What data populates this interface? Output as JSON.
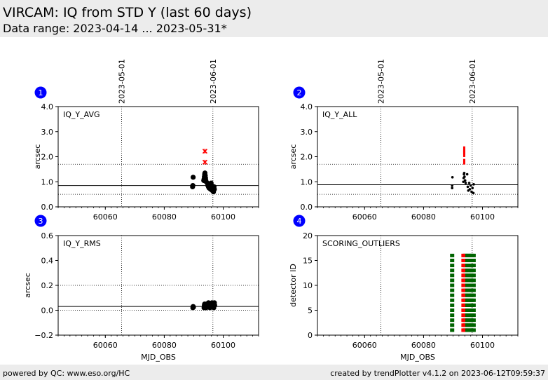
{
  "header": {
    "title": "VIRCAM: IQ from STD Y (last 60 days)",
    "subtitle": "Data range: 2023-04-14 ... 2023-05-31*"
  },
  "footer": {
    "left": "powered by QC: www.eso.org/HC",
    "right": "created by trendPlotter v4.1.2 on 2023-06-12T09:59:37"
  },
  "colors": {
    "badge": "#0000ff",
    "points": "#000000",
    "outliers": "#ff0000",
    "scoring_ok": "#006400",
    "scoring_bad": "#ff0000"
  },
  "chart_data": [
    {
      "panel": "1",
      "type": "scatter",
      "label": "IQ_Y_AVG",
      "xlabel": "",
      "ylabel": "arcsec",
      "xlim": [
        60044,
        60112
      ],
      "ylim": [
        0,
        4
      ],
      "xticks": [
        60060,
        60080,
        60100
      ],
      "yticks": [
        0,
        1,
        2,
        3,
        4
      ],
      "date_markers": [
        {
          "x": 60065.5,
          "label": "2023-05-01"
        },
        {
          "x": 60096.5,
          "label": "2023-06-01"
        }
      ],
      "ref_line": 0.85,
      "dotted_lines": [
        0.5,
        1.7
      ],
      "points": [
        [
          60089.6,
          0.8
        ],
        [
          60089.7,
          0.85
        ],
        [
          60089.8,
          1.18
        ],
        [
          60093.4,
          1.05
        ],
        [
          60093.5,
          1.1
        ],
        [
          60093.6,
          1.2
        ],
        [
          60093.7,
          1.3
        ],
        [
          60093.8,
          1.35
        ],
        [
          60093.9,
          1.25
        ],
        [
          60094.0,
          1.15
        ],
        [
          60094.1,
          1.05
        ],
        [
          60094.2,
          1.0
        ],
        [
          60094.6,
          0.95
        ],
        [
          60094.8,
          0.85
        ],
        [
          60095.0,
          0.8
        ],
        [
          60095.2,
          0.75
        ],
        [
          60095.5,
          0.9
        ],
        [
          60095.7,
          0.7
        ],
        [
          60095.9,
          0.95
        ],
        [
          60096.1,
          0.85
        ],
        [
          60096.3,
          0.65
        ],
        [
          60096.5,
          0.75
        ],
        [
          60096.7,
          0.6
        ],
        [
          60096.9,
          0.8
        ],
        [
          60097.0,
          0.7
        ]
      ],
      "outliers": [
        [
          60093.8,
          2.22
        ],
        [
          60093.8,
          1.78
        ]
      ]
    },
    {
      "panel": "2",
      "type": "scatter",
      "label": "IQ_Y_ALL",
      "xlabel": "",
      "ylabel": "arcsec",
      "xlim": [
        60044,
        60112
      ],
      "ylim": [
        0,
        4
      ],
      "xticks": [
        60060,
        60080,
        60100
      ],
      "yticks": [
        0,
        1,
        2,
        3,
        4
      ],
      "date_markers": [
        {
          "x": 60065.5,
          "label": "2023-05-01"
        },
        {
          "x": 60096.5,
          "label": "2023-06-01"
        }
      ],
      "ref_line": 0.88,
      "dotted_lines": [
        0.5,
        1.7
      ],
      "points": [
        [
          60089.7,
          0.75
        ],
        [
          60089.7,
          0.85
        ],
        [
          60089.8,
          1.18
        ],
        [
          60093.5,
          1.0
        ],
        [
          60093.6,
          1.15
        ],
        [
          60093.7,
          1.3
        ],
        [
          60093.8,
          1.35
        ],
        [
          60093.9,
          1.2
        ],
        [
          60094.1,
          1.05
        ],
        [
          60094.3,
          0.95
        ],
        [
          60094.8,
          1.3
        ],
        [
          60095.0,
          0.8
        ],
        [
          60095.2,
          0.65
        ],
        [
          60095.5,
          0.95
        ],
        [
          60095.7,
          0.7
        ],
        [
          60096.0,
          0.85
        ],
        [
          60096.3,
          0.6
        ],
        [
          60096.6,
          0.75
        ],
        [
          60096.9,
          0.55
        ],
        [
          60097.0,
          0.9
        ]
      ],
      "outliers": [
        [
          60093.8,
          2.3
        ],
        [
          60093.8,
          2.2
        ],
        [
          60093.8,
          2.1
        ],
        [
          60093.8,
          1.8
        ]
      ]
    },
    {
      "panel": "3",
      "type": "scatter",
      "label": "IQ_Y_RMS",
      "xlabel": "MJD_OBS",
      "ylabel": "arcsec",
      "xlim": [
        60044,
        60112
      ],
      "ylim": [
        -0.2,
        0.6
      ],
      "xticks": [
        60060,
        60080,
        60100
      ],
      "yticks": [
        -0.2,
        0.0,
        0.2,
        0.4,
        0.6
      ],
      "date_markers": [
        {
          "x": 60065.5,
          "label": "2023-05-01"
        },
        {
          "x": 60096.5,
          "label": "2023-06-01"
        }
      ],
      "ref_line": 0.03,
      "dotted_lines": [
        0.0,
        0.2
      ],
      "points": [
        [
          60089.7,
          0.02
        ],
        [
          60089.8,
          0.03
        ],
        [
          60089.9,
          0.025
        ],
        [
          60093.5,
          0.02
        ],
        [
          60093.6,
          0.04
        ],
        [
          60093.7,
          0.05
        ],
        [
          60093.8,
          0.03
        ],
        [
          60094.0,
          0.045
        ],
        [
          60094.2,
          0.02
        ],
        [
          60094.4,
          0.05
        ],
        [
          60094.7,
          0.03
        ],
        [
          60095.0,
          0.06
        ],
        [
          60095.2,
          0.04
        ],
        [
          60095.5,
          0.02
        ],
        [
          60095.7,
          0.05
        ],
        [
          60096.0,
          0.03
        ],
        [
          60096.2,
          0.06
        ],
        [
          60096.5,
          0.04
        ],
        [
          60096.8,
          0.02
        ],
        [
          60097.0,
          0.06
        ],
        [
          60097.1,
          0.04
        ]
      ],
      "outliers": []
    },
    {
      "panel": "4",
      "type": "scatter",
      "label": "SCORING_OUTLIERS",
      "xlabel": "MJD_OBS",
      "ylabel": "detector ID",
      "xlim": [
        60044,
        60112
      ],
      "ylim": [
        0,
        20
      ],
      "xticks": [
        60060,
        60080,
        60100
      ],
      "yticks": [
        0,
        5,
        10,
        15,
        20
      ],
      "date_markers": [
        {
          "x": 60065.5,
          "label": "2023-05-01"
        },
        {
          "x": 60096.5,
          "label": "2023-06-01"
        }
      ],
      "ref_line": null,
      "dotted_lines": [],
      "detector_ids": [
        1,
        2,
        3,
        4,
        5,
        6,
        7,
        8,
        9,
        10,
        11,
        12,
        13,
        14,
        15,
        16
      ],
      "ok_columns": [
        60089.7,
        60094.0,
        60094.5,
        60095.0,
        60095.5,
        60096.0,
        60096.5,
        60097.0
      ],
      "bad_columns": [
        60093.3,
        60093.7
      ]
    }
  ]
}
